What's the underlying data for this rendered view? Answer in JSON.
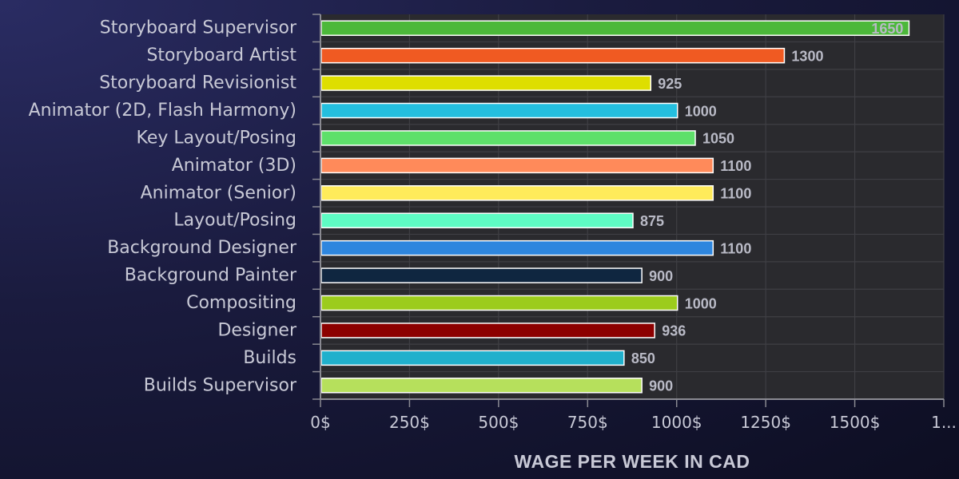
{
  "chart_data": {
    "type": "bar",
    "orientation": "horizontal",
    "title": "",
    "xlabel": "WAGE PER WEEK IN CAD",
    "ylabel": "",
    "xlim": [
      0,
      1750
    ],
    "x_ticks": [
      "0$",
      "250$",
      "500$",
      "750$",
      "1000$",
      "1250$",
      "1500$",
      "1..."
    ],
    "x_tick_values": [
      0,
      250,
      500,
      750,
      1000,
      1250,
      1500,
      1750
    ],
    "grid": true,
    "categories": [
      "Storyboard Supervisor",
      "Storyboard Artist",
      "Storyboard Revisionist",
      "Animator (2D, Flash Harmony)",
      "Key Layout/Posing",
      "Animator (3D)",
      "Animator (Senior)",
      "Layout/Posing",
      "Background Designer",
      "Background Painter",
      "Compositing",
      "Designer",
      "Builds",
      "Builds Supervisor"
    ],
    "values": [
      1650,
      1300,
      925,
      1000,
      1050,
      1100,
      1100,
      875,
      1100,
      900,
      1000,
      936,
      850,
      900
    ],
    "value_labels": [
      "1650",
      "1300",
      "925",
      "1000",
      "1050",
      "1100",
      "1100",
      "875",
      "1100",
      "900",
      "1000",
      "936",
      "850",
      "900"
    ],
    "colors": [
      "#4cb83a",
      "#f05a22",
      "#dede00",
      "#24bfdf",
      "#5ee06a",
      "#ff8a5a",
      "#ffeb5a",
      "#5efcc4",
      "#2e86de",
      "#0f2640",
      "#9ccc1c",
      "#8c0000",
      "#20b0cc",
      "#b6e05c"
    ]
  }
}
